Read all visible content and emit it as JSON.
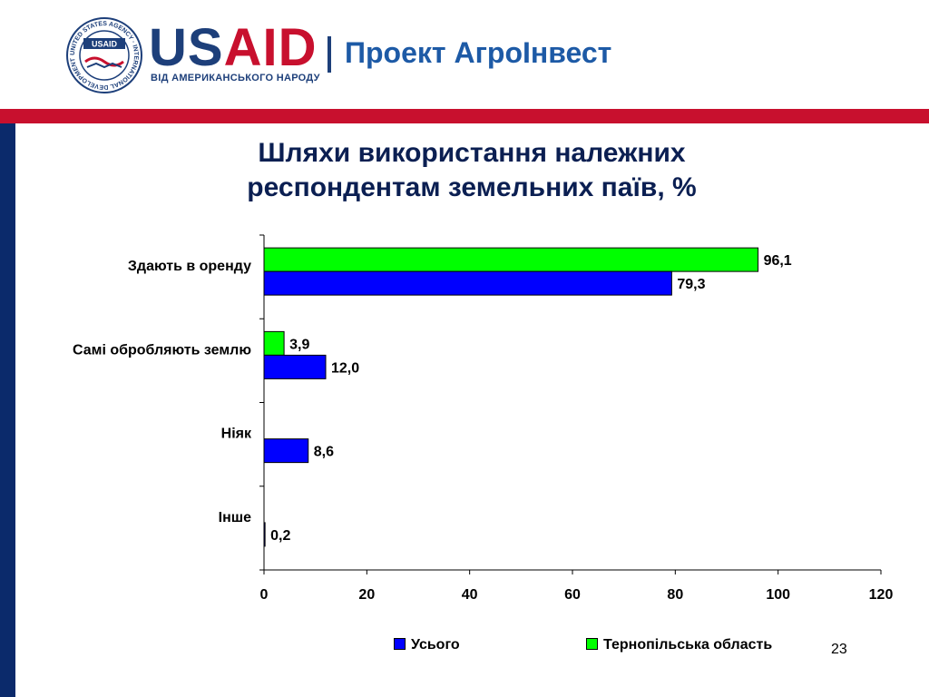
{
  "header": {
    "brand_us": "US",
    "brand_aid": "AID",
    "tagline": "ВІД АМЕРИКАНСЬКОГО НАРОДУ",
    "project": "Проект АгроІнвест",
    "seal_ring_text": "UNITED STATES AGENCY · INTERNATIONAL DEVELOPMENT ·",
    "seal_inner_text": "USAID"
  },
  "title_line1": "Шляхи використання належних",
  "title_line2": "респондентам земельних паїв, %",
  "chart_data": {
    "type": "bar",
    "orientation": "horizontal",
    "categories": [
      "Здають в оренду",
      "Самі обробляють землю",
      "Ніяк",
      "Інше"
    ],
    "series": [
      {
        "name": "Усього",
        "color": "#0000ff",
        "values": [
          79.3,
          12.0,
          8.6,
          0.2
        ],
        "labels": [
          "79,3",
          "12,0",
          "8,6",
          "0,2"
        ]
      },
      {
        "name": "Тернопільська область",
        "color": "#00ff00",
        "values": [
          96.1,
          3.9,
          null,
          null
        ],
        "labels": [
          "96,1",
          "3,9",
          "",
          ""
        ]
      }
    ],
    "xlim": [
      0,
      120
    ],
    "xticks": [
      "0",
      "20",
      "40",
      "60",
      "80",
      "100",
      "120"
    ],
    "xtick_values": [
      0,
      20,
      40,
      60,
      80,
      100,
      120
    ],
    "grid": false,
    "legend_position": "bottom"
  },
  "legend": [
    {
      "label": "Усього",
      "color": "#0000ff"
    },
    {
      "label": "Тернопільська область",
      "color": "#00ff00"
    }
  ],
  "page_number": "23"
}
